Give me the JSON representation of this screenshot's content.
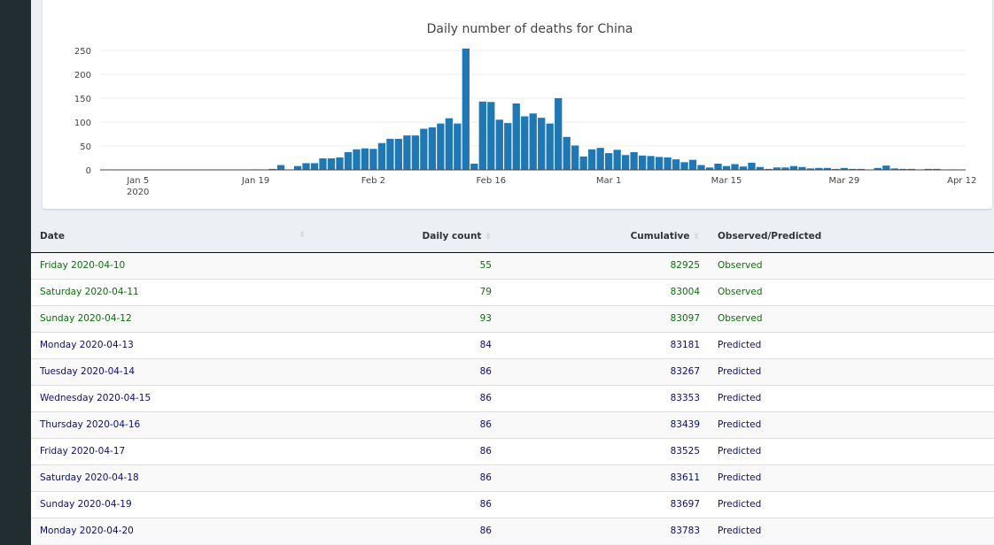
{
  "chart_data": {
    "type": "bar",
    "title": "Daily number of deaths for China",
    "start_date": "2020-01-01",
    "color": "#1f77b4",
    "values": [
      0,
      0,
      0,
      0,
      0,
      0,
      0,
      0,
      0,
      0,
      0,
      0,
      0,
      0,
      0,
      0,
      0,
      0,
      1,
      0,
      2,
      10,
      0,
      8,
      14,
      14,
      24,
      24,
      26,
      37,
      43,
      45,
      44,
      56,
      65,
      65,
      72,
      72,
      86,
      89,
      97,
      108,
      97,
      254,
      13,
      143,
      142,
      105,
      98,
      139,
      112,
      118,
      109,
      97,
      150,
      69,
      51,
      28,
      43,
      46,
      35,
      42,
      31,
      37,
      30,
      29,
      27,
      26,
      22,
      16,
      21,
      10,
      5,
      13,
      8,
      12,
      7,
      15,
      6,
      2,
      5,
      5,
      8,
      6,
      3,
      4,
      4,
      2,
      4,
      2,
      2,
      0,
      4,
      9,
      3,
      2,
      2,
      0,
      2,
      2,
      0,
      1,
      0
    ],
    "ylim": [
      0,
      260
    ],
    "yticks": [
      0,
      50,
      100,
      150,
      200,
      250
    ],
    "xticks": [
      {
        "day": 4,
        "label": "Jan 5",
        "sub": "2020"
      },
      {
        "day": 18,
        "label": "Jan 19"
      },
      {
        "day": 32,
        "label": "Feb 2"
      },
      {
        "day": 46,
        "label": "Feb 16"
      },
      {
        "day": 60,
        "label": "Mar 1"
      },
      {
        "day": 74,
        "label": "Mar 15"
      },
      {
        "day": 88,
        "label": "Mar 29"
      },
      {
        "day": 102,
        "label": "Apr 12"
      }
    ],
    "grid": true
  },
  "table": {
    "headers": [
      "Date",
      "Daily count",
      "Cumulative",
      "Observed/Predicted"
    ],
    "rows": [
      {
        "date": "Friday 2020-04-10",
        "daily": "55",
        "cum": "82925",
        "status": "Observed"
      },
      {
        "date": "Saturday 2020-04-11",
        "daily": "79",
        "cum": "83004",
        "status": "Observed"
      },
      {
        "date": "Sunday 2020-04-12",
        "daily": "93",
        "cum": "83097",
        "status": "Observed"
      },
      {
        "date": "Monday 2020-04-13",
        "daily": "84",
        "cum": "83181",
        "status": "Predicted"
      },
      {
        "date": "Tuesday 2020-04-14",
        "daily": "86",
        "cum": "83267",
        "status": "Predicted"
      },
      {
        "date": "Wednesday 2020-04-15",
        "daily": "86",
        "cum": "83353",
        "status": "Predicted"
      },
      {
        "date": "Thursday 2020-04-16",
        "daily": "86",
        "cum": "83439",
        "status": "Predicted"
      },
      {
        "date": "Friday 2020-04-17",
        "daily": "86",
        "cum": "83525",
        "status": "Predicted"
      },
      {
        "date": "Saturday 2020-04-18",
        "daily": "86",
        "cum": "83611",
        "status": "Predicted"
      },
      {
        "date": "Sunday 2020-04-19",
        "daily": "86",
        "cum": "83697",
        "status": "Predicted"
      },
      {
        "date": "Monday 2020-04-20",
        "daily": "86",
        "cum": "83783",
        "status": "Predicted"
      }
    ]
  }
}
